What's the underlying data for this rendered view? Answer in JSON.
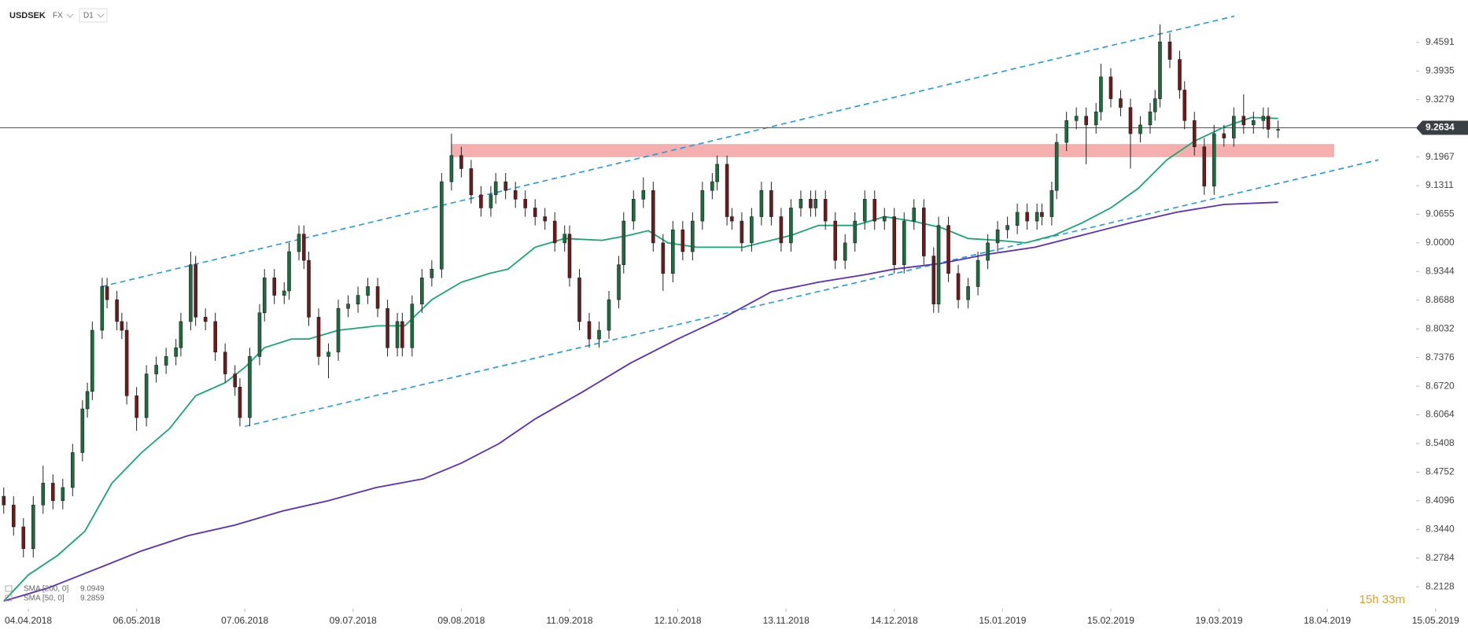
{
  "header": {
    "symbol": "USDSEK",
    "market": "FX",
    "interval": "D1"
  },
  "chart_data": {
    "type": "candlestick",
    "xlim": [
      -5.76,
      292.6
    ],
    "ylim": [
      8.17,
      9.556
    ],
    "xticks": [
      {
        "value": 0,
        "label": "04.04.2018"
      },
      {
        "value": 22,
        "label": "06.05.2018"
      },
      {
        "value": 44,
        "label": "07.06.2018"
      },
      {
        "value": 66,
        "label": "09.07.2018"
      },
      {
        "value": 88,
        "label": "09.08.2018"
      },
      {
        "value": 110,
        "label": "11.09.2018"
      },
      {
        "value": 132,
        "label": "12.10.2018"
      },
      {
        "value": 154,
        "label": "13.11.2018"
      },
      {
        "value": 176,
        "label": "14.12.2018"
      },
      {
        "value": 198,
        "label": "15.01.2019"
      },
      {
        "value": 220,
        "label": "15.02.2019"
      },
      {
        "value": 242,
        "label": "19.03.2019"
      },
      {
        "value": 264,
        "label": "18.04.2019"
      },
      {
        "value": 286,
        "label": "15.05.2019"
      }
    ],
    "yticks": [
      9.4591,
      9.3935,
      9.3279,
      9.1967,
      9.1311,
      9.0655,
      {
        "value": 9,
        "label": "9.0000"
      },
      8.9344,
      8.8688,
      8.8032,
      8.7376,
      {
        "value": 8.672,
        "label": "8.6720"
      },
      8.6064,
      8.5408,
      8.4752,
      8.4096,
      {
        "value": 8.344,
        "label": "8.3440"
      },
      8.2784,
      8.2128
    ],
    "last_price": 9.2634,
    "candles": {
      "up_color": "#1d6b3f",
      "down_color": "#6e1a1a",
      "x": [
        -5,
        -3,
        -1,
        1,
        3,
        5,
        7,
        9,
        11,
        12,
        13,
        15,
        16,
        18,
        19,
        20,
        22,
        24,
        26,
        28,
        30,
        31,
        33,
        34,
        36,
        38,
        40,
        42,
        43,
        45,
        47,
        48,
        50,
        52,
        53,
        55,
        56,
        57,
        59,
        61,
        63,
        65,
        67,
        69,
        71,
        73,
        75,
        76,
        78,
        80,
        82,
        84,
        86,
        88,
        90,
        92,
        94,
        95,
        97,
        99,
        101,
        103,
        105,
        107,
        109,
        110,
        112,
        114,
        116,
        118,
        120,
        121,
        123,
        125,
        127,
        129,
        131,
        133,
        135,
        137,
        139,
        140,
        142,
        143,
        145,
        147,
        149,
        151,
        153,
        155,
        157,
        159,
        160,
        162,
        164,
        166,
        168,
        170,
        172,
        174,
        176,
        178,
        180,
        182,
        184,
        185,
        187,
        189,
        191,
        193,
        195,
        197,
        199,
        201,
        203,
        205,
        206,
        208,
        209,
        211,
        213,
        215,
        217,
        218,
        220,
        222,
        224,
        226,
        228,
        229,
        230,
        232,
        234,
        235,
        237,
        239,
        241,
        243,
        245,
        247,
        249,
        251,
        252,
        254
      ],
      "open": [
        8.42,
        8.4,
        8.35,
        8.3,
        8.4,
        8.45,
        8.41,
        8.44,
        8.52,
        8.62,
        8.66,
        8.8,
        8.9,
        8.87,
        8.82,
        8.8,
        8.65,
        8.6,
        8.7,
        8.72,
        8.74,
        8.76,
        8.82,
        8.95,
        8.83,
        8.82,
        8.75,
        8.7,
        8.67,
        8.6,
        8.74,
        8.84,
        8.92,
        8.88,
        8.89,
        8.98,
        9.02,
        8.96,
        8.83,
        8.74,
        8.75,
        8.85,
        8.86,
        8.88,
        8.9,
        8.85,
        8.76,
        8.82,
        8.76,
        8.86,
        8.92,
        8.94,
        9.14,
        9.2,
        9.17,
        9.11,
        9.08,
        9.11,
        9.14,
        9.12,
        9.1,
        9.08,
        9.06,
        9.05,
        9.0,
        9.02,
        8.92,
        8.82,
        8.78,
        8.8,
        8.87,
        8.95,
        9.05,
        9.1,
        9.12,
        9.0,
        8.93,
        9.03,
        8.98,
        9.05,
        9.12,
        9.14,
        9.18,
        9.06,
        9.05,
        9.0,
        9.06,
        9.12,
        9.06,
        9.0,
        9.08,
        9.1,
        9.08,
        9.1,
        9.05,
        8.96,
        9.0,
        9.05,
        9.1,
        9.05,
        9.06,
        8.95,
        9.05,
        9.08,
        8.97,
        8.86,
        9.04,
        8.93,
        8.87,
        8.9,
        8.96,
        9.0,
        9.03,
        9.04,
        9.07,
        9.05,
        9.07,
        9.06,
        9.12,
        9.23,
        9.28,
        9.29,
        9.27,
        9.3,
        9.38,
        9.33,
        9.31,
        9.25,
        9.27,
        9.3,
        9.33,
        9.46,
        9.42,
        9.35,
        9.28,
        9.22,
        9.13,
        9.25,
        9.24,
        9.29,
        9.27,
        9.28,
        9.29,
        9.26
      ],
      "high": [
        8.44,
        8.42,
        8.37,
        8.42,
        8.49,
        8.47,
        8.46,
        8.54,
        8.64,
        8.68,
        8.82,
        8.92,
        8.92,
        8.89,
        8.84,
        8.82,
        8.67,
        8.72,
        8.74,
        8.76,
        8.78,
        8.84,
        8.98,
        8.97,
        8.85,
        8.84,
        8.77,
        8.72,
        8.69,
        8.76,
        8.86,
        8.94,
        8.94,
        8.91,
        9.0,
        9.04,
        9.04,
        8.98,
        8.85,
        8.77,
        8.87,
        8.88,
        8.9,
        8.92,
        8.92,
        8.87,
        8.84,
        8.84,
        8.88,
        8.94,
        8.96,
        9.16,
        9.25,
        9.22,
        9.19,
        9.13,
        9.13,
        9.16,
        9.16,
        9.14,
        9.12,
        9.1,
        9.08,
        9.07,
        9.04,
        9.04,
        8.94,
        8.84,
        8.82,
        8.89,
        8.97,
        9.07,
        9.12,
        9.15,
        9.14,
        9.02,
        9.05,
        9.05,
        9.07,
        9.14,
        9.16,
        9.2,
        9.2,
        9.08,
        9.07,
        9.08,
        9.14,
        9.14,
        9.08,
        9.1,
        9.12,
        9.12,
        9.12,
        9.12,
        9.07,
        9.02,
        9.07,
        9.12,
        9.12,
        9.08,
        9.08,
        9.07,
        9.1,
        9.1,
        8.99,
        9.06,
        9.06,
        8.95,
        8.92,
        8.98,
        9.02,
        9.05,
        9.06,
        9.09,
        9.09,
        9.09,
        9.09,
        9.14,
        9.25,
        9.3,
        9.31,
        9.31,
        9.32,
        9.41,
        9.4,
        9.35,
        9.33,
        9.29,
        9.32,
        9.35,
        9.5,
        9.48,
        9.44,
        9.37,
        9.3,
        9.24,
        9.27,
        9.27,
        9.31,
        9.34,
        9.3,
        9.31,
        9.31,
        9.28
      ],
      "low": [
        8.38,
        8.33,
        8.28,
        8.28,
        8.38,
        8.39,
        8.39,
        8.42,
        8.5,
        8.6,
        8.64,
        8.78,
        8.85,
        8.8,
        8.78,
        8.63,
        8.57,
        8.58,
        8.68,
        8.7,
        8.72,
        8.74,
        8.8,
        8.81,
        8.8,
        8.73,
        8.68,
        8.65,
        8.58,
        8.58,
        8.72,
        8.82,
        8.86,
        8.86,
        8.87,
        8.96,
        8.94,
        8.81,
        8.72,
        8.69,
        8.73,
        8.83,
        8.84,
        8.86,
        8.83,
        8.74,
        8.74,
        8.74,
        8.74,
        8.84,
        8.9,
        8.92,
        9.12,
        9.15,
        9.09,
        9.06,
        9.06,
        9.09,
        9.1,
        9.08,
        9.06,
        9.04,
        9.03,
        8.98,
        8.98,
        8.9,
        8.8,
        8.76,
        8.76,
        8.78,
        8.85,
        8.93,
        9.03,
        9.08,
        8.98,
        8.89,
        8.91,
        8.96,
        8.96,
        9.03,
        9.1,
        9.12,
        9.04,
        9.03,
        8.98,
        8.98,
        9.04,
        9.04,
        8.98,
        8.98,
        9.06,
        9.06,
        9.06,
        9.03,
        8.94,
        8.94,
        8.98,
        9.03,
        9.03,
        9.03,
        8.93,
        8.93,
        9.03,
        8.95,
        8.84,
        8.84,
        8.91,
        8.85,
        8.85,
        8.88,
        8.94,
        8.98,
        9.01,
        9.02,
        9.03,
        9.03,
        9.04,
        9.04,
        9.1,
        9.21,
        9.26,
        9.18,
        9.25,
        9.28,
        9.31,
        9.29,
        9.17,
        9.23,
        9.25,
        9.28,
        9.31,
        9.4,
        9.33,
        9.26,
        9.2,
        9.11,
        9.11,
        9.22,
        9.22,
        9.25,
        9.25,
        9.26,
        9.24,
        9.24
      ],
      "close": [
        8.4,
        8.35,
        8.3,
        8.4,
        8.45,
        8.41,
        8.44,
        8.52,
        8.62,
        8.66,
        8.8,
        8.9,
        8.87,
        8.82,
        8.8,
        8.65,
        8.6,
        8.7,
        8.72,
        8.74,
        8.76,
        8.82,
        8.95,
        8.83,
        8.82,
        8.75,
        8.7,
        8.67,
        8.6,
        8.74,
        8.84,
        8.92,
        8.88,
        8.89,
        8.98,
        9.02,
        8.96,
        8.83,
        8.74,
        8.75,
        8.85,
        8.86,
        8.88,
        8.9,
        8.85,
        8.76,
        8.82,
        8.76,
        8.86,
        8.92,
        8.94,
        9.14,
        9.2,
        9.17,
        9.11,
        9.08,
        9.11,
        9.14,
        9.12,
        9.1,
        9.08,
        9.06,
        9.05,
        9.0,
        9.02,
        8.92,
        8.82,
        8.78,
        8.8,
        8.87,
        8.95,
        9.05,
        9.1,
        9.12,
        9.0,
        8.93,
        9.03,
        8.98,
        9.05,
        9.12,
        9.14,
        9.18,
        9.06,
        9.05,
        9.0,
        9.06,
        9.12,
        9.06,
        9.0,
        9.08,
        9.1,
        9.08,
        9.1,
        9.05,
        8.96,
        9.0,
        9.05,
        9.1,
        9.05,
        9.06,
        8.95,
        9.05,
        9.08,
        8.97,
        8.86,
        9.04,
        8.93,
        8.87,
        8.9,
        8.96,
        9.0,
        9.03,
        9.04,
        9.07,
        9.05,
        9.07,
        9.06,
        9.12,
        9.23,
        9.28,
        9.29,
        9.27,
        9.3,
        9.38,
        9.33,
        9.31,
        9.25,
        9.27,
        9.3,
        9.33,
        9.46,
        9.42,
        9.35,
        9.28,
        9.22,
        9.13,
        9.25,
        9.24,
        9.29,
        9.27,
        9.28,
        9.29,
        9.26,
        9.26
      ]
    },
    "series": [
      {
        "name": "SMA [200, 0]",
        "last_value": 9.0949,
        "color": "#5a2eb8",
        "x": [
          -5,
          4,
          13,
          23,
          32.5,
          42,
          51.6,
          61,
          70.7,
          80.3,
          88,
          95.6,
          103,
          112.8,
          122.4,
          132,
          141.5,
          151,
          160.6,
          170,
          176,
          185.5,
          195,
          204.6,
          214,
          223.7,
          233.3,
          243,
          254
        ],
        "values": [
          8.18,
          8.21,
          8.25,
          8.295,
          8.33,
          8.354,
          8.386,
          8.41,
          8.44,
          8.46,
          8.496,
          8.54,
          8.597,
          8.66,
          8.725,
          8.78,
          8.83,
          8.888,
          8.91,
          8.927,
          8.94,
          8.953,
          8.974,
          8.99,
          9.017,
          9.045,
          9.07,
          9.088,
          9.093
        ]
      },
      {
        "name": "SMA [50, 0]",
        "last_value": 9.2859,
        "color": "#17a673",
        "x": [
          -5,
          0,
          6,
          11.5,
          17,
          23,
          28.7,
          34,
          40,
          44,
          48,
          53.5,
          57,
          63,
          71,
          76.5,
          82,
          88,
          93.7,
          97.5,
          103,
          109,
          116.6,
          122,
          126,
          130,
          135.8,
          145.3,
          155,
          160.6,
          168,
          174,
          179.7,
          185.5,
          191,
          197,
          202.7,
          208.4,
          214,
          220,
          225.6,
          231.4,
          237,
          243,
          248.6,
          254
        ],
        "values": [
          8.18,
          8.24,
          8.285,
          8.34,
          8.45,
          8.52,
          8.575,
          8.65,
          8.68,
          8.715,
          8.76,
          8.78,
          8.78,
          8.8,
          8.81,
          8.81,
          8.87,
          8.91,
          8.93,
          8.94,
          8.99,
          9.01,
          9.006,
          9.017,
          9.028,
          9,
          8.99,
          8.99,
          9.017,
          9.04,
          9.04,
          9.06,
          9.05,
          9.035,
          9.01,
          9.006,
          9,
          9.017,
          9.045,
          9.08,
          9.125,
          9.19,
          9.233,
          9.265,
          9.287,
          9.285
        ]
      }
    ],
    "trendlines": [
      {
        "color": "#1e9be3",
        "x": [
          14.9,
          245.1
        ],
        "y": [
          8.9,
          9.519
        ]
      },
      {
        "color": "#1e9be3",
        "x": [
          44,
          274.4
        ],
        "y": [
          8.58,
          9.19
        ]
      }
    ],
    "zone": {
      "color": "#f4a6a6",
      "x": [
        85.9,
        265.4
      ],
      "y": [
        9.1962,
        9.2263
      ]
    },
    "countdown": "15h 33m"
  }
}
